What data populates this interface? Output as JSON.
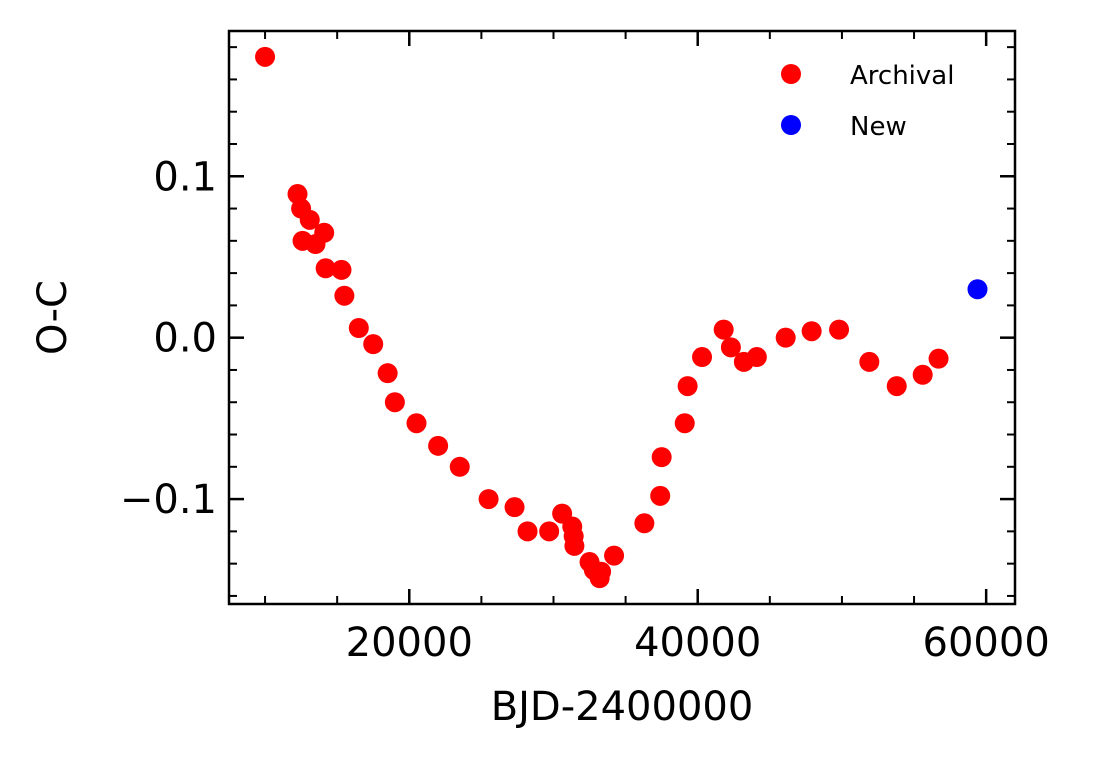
{
  "chart_data": {
    "type": "scatter",
    "title": "",
    "xlabel": "BJD-2400000",
    "ylabel": "O-C",
    "xlim": [
      7500,
      62000
    ],
    "ylim": [
      -0.165,
      0.19
    ],
    "xticks": [
      20000,
      40000,
      60000
    ],
    "xtick_labels": [
      "20000",
      "40000",
      "60000"
    ],
    "yticks": [
      -0.1,
      0.0,
      0.1
    ],
    "ytick_labels": [
      "−0.1",
      "0.0",
      "0.1"
    ],
    "grid": false,
    "legend_position": "top-right",
    "series": [
      {
        "name": "Archival",
        "color": "#ff0000",
        "x": [
          10000,
          12250,
          12600,
          12500,
          13100,
          13500,
          14100,
          14200,
          15300,
          15500,
          16500,
          17500,
          18500,
          19000,
          20500,
          22000,
          23500,
          25500,
          27300,
          28200,
          29700,
          30600,
          31300,
          31400,
          31450,
          32500,
          32800,
          33200,
          33300,
          34200,
          36300,
          37400,
          37500,
          39100,
          39300,
          40300,
          41800,
          42300,
          43200,
          44100,
          46100,
          47900,
          49800,
          51900,
          53800,
          55600,
          56700
        ],
        "y": [
          0.174,
          0.089,
          0.06,
          0.08,
          0.073,
          0.058,
          0.065,
          0.043,
          0.042,
          0.026,
          0.006,
          -0.004,
          -0.022,
          -0.04,
          -0.053,
          -0.067,
          -0.08,
          -0.1,
          -0.105,
          -0.12,
          -0.12,
          -0.109,
          -0.117,
          -0.123,
          -0.129,
          -0.139,
          -0.144,
          -0.149,
          -0.145,
          -0.135,
          -0.115,
          -0.098,
          -0.074,
          -0.053,
          -0.03,
          -0.012,
          0.005,
          -0.006,
          -0.015,
          -0.012,
          0.0,
          0.004,
          0.005,
          -0.015,
          -0.03,
          -0.023,
          -0.013
        ]
      },
      {
        "name": "New",
        "color": "#0000ff",
        "x": [
          59400
        ],
        "y": [
          0.03
        ]
      }
    ]
  }
}
